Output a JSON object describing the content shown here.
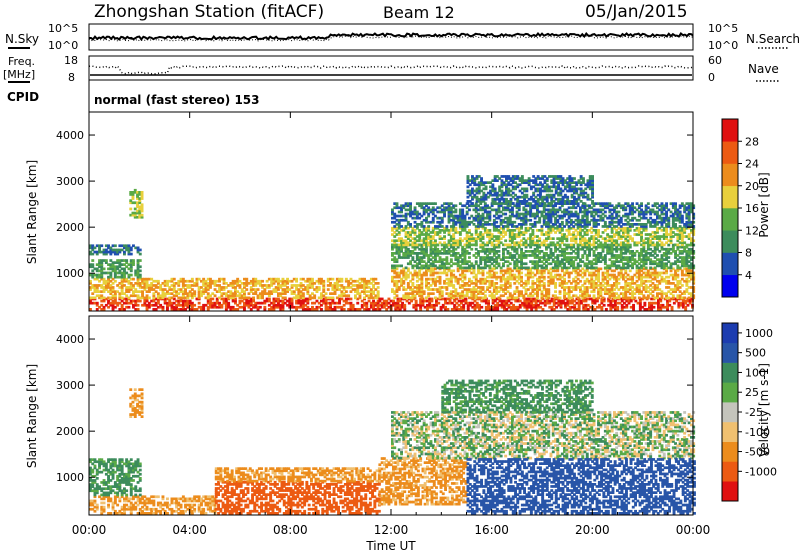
{
  "header": {
    "title": "Zhongshan Station (fitACF)",
    "beam": "Beam 12",
    "date": "05/Jan/2015"
  },
  "top_panels": {
    "nsky_label": "N.Sky",
    "nsky_ticks": [
      "10^5",
      "10^0"
    ],
    "nsearch_label": "N.Search",
    "nsearch_ticks": [
      "10^5",
      "10^0"
    ],
    "freq_label_1": "Freq.",
    "freq_label_2": "[MHz]",
    "freq_ticks": [
      "18",
      "8"
    ],
    "nave_label": "Nave",
    "nave_ticks": [
      "60",
      "0"
    ],
    "cpid_label": "CPID",
    "cpid_text": "normal (fast stereo) 153"
  },
  "colors": {
    "power_scale": [
      "#0000ee",
      "#1f4fb0",
      "#3c8c5c",
      "#5aaa46",
      "#e8d03c",
      "#ec8c1c",
      "#ec5a12",
      "#e01010"
    ],
    "velocity_scale": [
      "#e01010",
      "#ec5a12",
      "#ec8c1c",
      "#f0c070",
      "#c4c4bc",
      "#5aaa46",
      "#3c8c5c",
      "#2855a8",
      "#1c3cb0"
    ]
  },
  "chart_data": [
    {
      "type": "heatmap",
      "panel": "power",
      "ylabel": "Slant Range [km]",
      "xlabel": "Time UT",
      "x_ticks": [
        "00:00",
        "04:00",
        "08:00",
        "12:00",
        "16:00",
        "20:00",
        "00:00"
      ],
      "y_ticks": [
        "1000",
        "2000",
        "3000",
        "4000"
      ],
      "ylim": [
        180,
        4500
      ],
      "colorbar_label": "Power [dB]",
      "colorbar_ticks": [
        "4",
        "8",
        "12",
        "16",
        "20",
        "24",
        "28"
      ],
      "regions": [
        {
          "t0": 0.0,
          "t1": 11.5,
          "r0": 200,
          "r1": 450,
          "level": 28
        },
        {
          "t0": 0.0,
          "t1": 11.5,
          "r0": 450,
          "r1": 900,
          "level": 20
        },
        {
          "t0": 0.0,
          "t1": 2.0,
          "r0": 900,
          "r1": 1300,
          "level": 12
        },
        {
          "t0": 0.0,
          "t1": 2.0,
          "r0": 1400,
          "r1": 1600,
          "level": 8
        },
        {
          "t0": 1.6,
          "t1": 2.1,
          "r0": 2200,
          "r1": 2800,
          "level": 16
        },
        {
          "t0": 11.5,
          "t1": 24.0,
          "r0": 200,
          "r1": 450,
          "level": 28
        },
        {
          "t0": 12.0,
          "t1": 24.0,
          "r0": 450,
          "r1": 1100,
          "level": 20
        },
        {
          "t0": 12.0,
          "t1": 24.0,
          "r0": 1100,
          "r1": 1600,
          "level": 12
        },
        {
          "t0": 12.0,
          "t1": 24.0,
          "r0": 1600,
          "r1": 2000,
          "level": 16
        },
        {
          "t0": 12.0,
          "t1": 24.0,
          "r0": 2000,
          "r1": 2500,
          "level": 8
        },
        {
          "t0": 15.0,
          "t1": 20.0,
          "r0": 2500,
          "r1": 3100,
          "level": 8
        }
      ]
    },
    {
      "type": "heatmap",
      "panel": "velocity",
      "ylabel": "Slant Range [km]",
      "xlabel": "Time UT",
      "x_ticks": [
        "00:00",
        "04:00",
        "08:00",
        "12:00",
        "16:00",
        "20:00",
        "00:00"
      ],
      "y_ticks": [
        "1000",
        "2000",
        "3000",
        "4000"
      ],
      "ylim": [
        180,
        4500
      ],
      "colorbar_label": "Velocity [m s-1]",
      "colorbar_ticks": [
        "1000",
        "500",
        "100",
        "25",
        "-25",
        "-100",
        "-500",
        "-1000"
      ],
      "regions": [
        {
          "t0": 0.0,
          "t1": 5.0,
          "r0": 200,
          "r1": 600,
          "level": -100
        },
        {
          "t0": 0.0,
          "t1": 2.0,
          "r0": 600,
          "r1": 1400,
          "level": 100
        },
        {
          "t0": 1.6,
          "t1": 2.1,
          "r0": 2300,
          "r1": 2900,
          "level": -100
        },
        {
          "t0": 5.0,
          "t1": 11.5,
          "r0": 200,
          "r1": 900,
          "level": -500
        },
        {
          "t0": 5.0,
          "t1": 11.5,
          "r0": 900,
          "r1": 1200,
          "level": -100
        },
        {
          "t0": 11.5,
          "t1": 15.0,
          "r0": 400,
          "r1": 1400,
          "level": -100
        },
        {
          "t0": 12.0,
          "t1": 24.0,
          "r0": 1400,
          "r1": 2400,
          "level": 25
        },
        {
          "t0": 15.0,
          "t1": 24.0,
          "r0": 200,
          "r1": 1400,
          "level": 500
        },
        {
          "t0": 14.0,
          "t1": 20.0,
          "r0": 2400,
          "r1": 3100,
          "level": 100
        }
      ]
    }
  ]
}
